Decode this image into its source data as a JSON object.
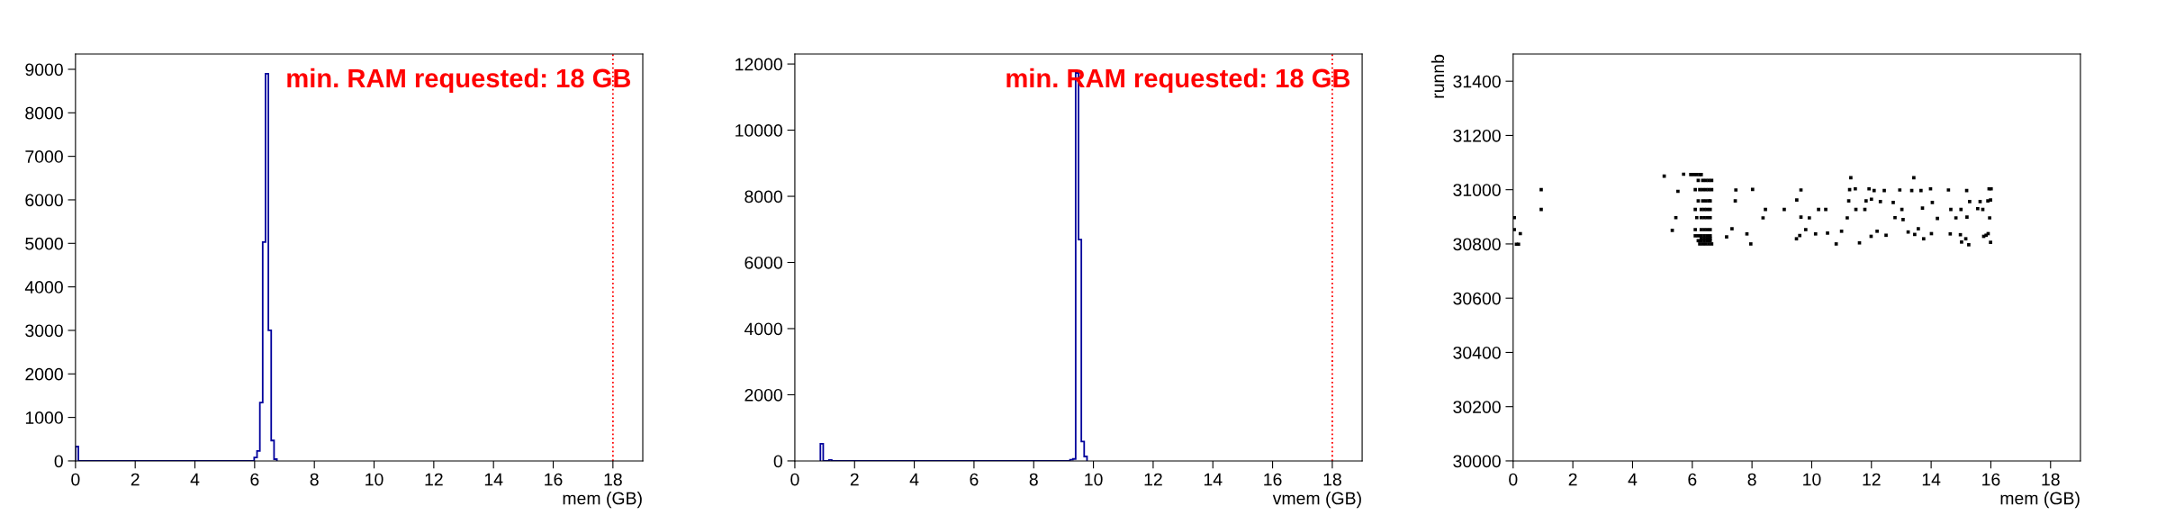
{
  "chart_data": [
    {
      "type": "histogram",
      "xlabel": "mem (GB)",
      "color": "#00009c",
      "bins": [
        0,
        0.095,
        5.985,
        6.08,
        6.175,
        6.27,
        6.365,
        6.46,
        6.555,
        6.65,
        6.745
      ],
      "values": [
        330,
        0,
        80,
        230,
        1340,
        5030,
        8900,
        3000,
        470,
        40
      ],
      "xlim": [
        0,
        19
      ],
      "xticks": [
        0,
        2,
        4,
        6,
        8,
        10,
        12,
        14,
        16,
        18
      ],
      "ylim": [
        0,
        9350
      ],
      "yticks": [
        0,
        1000,
        2000,
        3000,
        4000,
        5000,
        6000,
        7000,
        8000,
        9000
      ],
      "ref_lines": [
        {
          "axis": "x",
          "value": 18,
          "label": "min. RAM requested: 18 GB",
          "color": "#ff0000",
          "line_style": "dotted"
        }
      ],
      "grid": false,
      "legend": false
    },
    {
      "type": "histogram",
      "xlabel": "vmem (GB)",
      "color": "#00009c",
      "bins": [
        0.855,
        0.95,
        1.14,
        1.235,
        9.215,
        9.31,
        9.405,
        9.5,
        9.595,
        9.69,
        9.785
      ],
      "values": [
        520,
        0,
        30,
        0,
        35,
        60,
        11730,
        6690,
        585,
        135
      ],
      "xlim": [
        0,
        19
      ],
      "xticks": [
        0,
        2,
        4,
        6,
        8,
        10,
        12,
        14,
        16,
        18
      ],
      "ylim": [
        0,
        12300
      ],
      "yticks": [
        0,
        2000,
        4000,
        6000,
        8000,
        10000,
        12000
      ],
      "ref_lines": [
        {
          "axis": "x",
          "value": 18,
          "label": "min. RAM requested: 18 GB",
          "color": "#ff0000",
          "line_style": "dotted"
        }
      ],
      "grid": false,
      "legend": false
    },
    {
      "type": "scatter",
      "xlabel": "mem (GB)",
      "ylabel": "runnb",
      "color": "#000000",
      "marker": "square",
      "x": [
        0.94,
        0.94,
        5.06,
        5.71,
        5.52,
        5.33,
        5.45,
        7.46,
        7.44,
        7.15,
        7.33,
        8.02,
        7.83,
        7.96,
        8.45,
        8.37,
        9.08,
        9.64,
        9.5,
        9.64,
        9.92,
        9.49,
        9.6,
        9.8,
        10.13,
        10.23,
        10.47,
        10.53,
        10.82,
        11.0,
        11.19,
        11.24,
        11.31,
        11.27,
        11.46,
        11.48,
        11.6,
        11.78,
        11.82,
        11.92,
        12.0,
        12.09,
        11.99,
        12.19,
        12.3,
        12.43,
        12.49,
        12.73,
        12.79,
        12.95,
        13.02,
        13.06,
        13.23,
        13.35,
        13.42,
        13.45,
        13.57,
        13.66,
        13.71,
        13.75,
        13.98,
        14.04,
        14.01,
        14.21,
        14.58,
        14.66,
        14.64,
        14.83,
        15.0,
        14.98,
        15.02,
        15.19,
        15.2,
        15.26,
        15.16,
        15.29,
        15.56,
        15.64,
        15.73,
        15.76,
        15.84,
        15.9,
        15.94,
        15.99,
        15.96,
        15.99,
        16.01,
        15.91,
        0.04,
        0.04,
        0.11,
        0.18,
        0.24,
        5.95,
        6.05,
        6.15,
        6.25,
        6.3,
        6.2,
        6.35,
        6.45,
        6.55,
        6.65,
        6.1,
        6.25,
        6.35,
        6.45,
        6.55,
        6.65,
        6.2,
        6.35,
        6.45,
        6.55,
        6.6,
        6.1,
        6.3,
        6.4,
        6.5,
        6.6,
        6.15,
        6.3,
        6.4,
        6.5,
        6.6,
        6.1,
        6.3,
        6.4,
        6.5,
        6.6,
        6.1,
        6.2,
        6.3,
        6.4,
        6.5,
        6.6,
        6.2,
        6.3,
        6.4,
        6.5,
        6.6,
        6.25,
        6.35,
        6.45,
        6.55,
        6.65,
        6.3,
        6.4,
        6.5,
        6.6
      ],
      "values": [
        31000,
        30927,
        31050,
        31057,
        30994,
        30850,
        30897,
        30999,
        30959,
        30826,
        30856,
        31001,
        30837,
        30800,
        30927,
        30896,
        30927,
        30999,
        30962,
        30899,
        30896,
        30819,
        30831,
        30853,
        30837,
        30927,
        30927,
        30840,
        30800,
        30847,
        30896,
        30959,
        31044,
        31000,
        31003,
        30927,
        30804,
        30927,
        30959,
        31003,
        30965,
        30997,
        30828,
        30847,
        30956,
        30997,
        30832,
        30953,
        30897,
        30999,
        30927,
        30890,
        30844,
        30997,
        31044,
        30835,
        30856,
        30997,
        30932,
        30819,
        31003,
        30953,
        30838,
        30894,
        30999,
        30927,
        30837,
        30896,
        30927,
        30834,
        30807,
        30997,
        30899,
        30797,
        30819,
        30956,
        30930,
        30956,
        30927,
        30828,
        30832,
        30959,
        31003,
        30962,
        30896,
        30806,
        31003,
        30838,
        30897,
        30853,
        30799,
        30799,
        30838,
        31056,
        31056,
        31056,
        31056,
        31056,
        31034,
        31034,
        31034,
        31034,
        31034,
        31000,
        31000,
        31000,
        31000,
        31000,
        31000,
        30959,
        30959,
        30959,
        30959,
        30959,
        30927,
        30927,
        30927,
        30927,
        30927,
        30897,
        30897,
        30897,
        30897,
        30897,
        30853,
        30853,
        30853,
        30853,
        30853,
        30830,
        30830,
        30830,
        30830,
        30830,
        30830,
        30812,
        30812,
        30812,
        30812,
        30812,
        30800,
        30800,
        30800,
        30800,
        30800,
        30820,
        30820,
        30820,
        30820
      ],
      "xlim": [
        0,
        19
      ],
      "xticks": [
        0,
        2,
        4,
        6,
        8,
        10,
        12,
        14,
        16,
        18
      ],
      "ylim": [
        30000,
        31500
      ],
      "yticks": [
        30000,
        30200,
        30400,
        30600,
        30800,
        31000,
        31200,
        31400
      ],
      "grid": false,
      "legend": false
    }
  ]
}
